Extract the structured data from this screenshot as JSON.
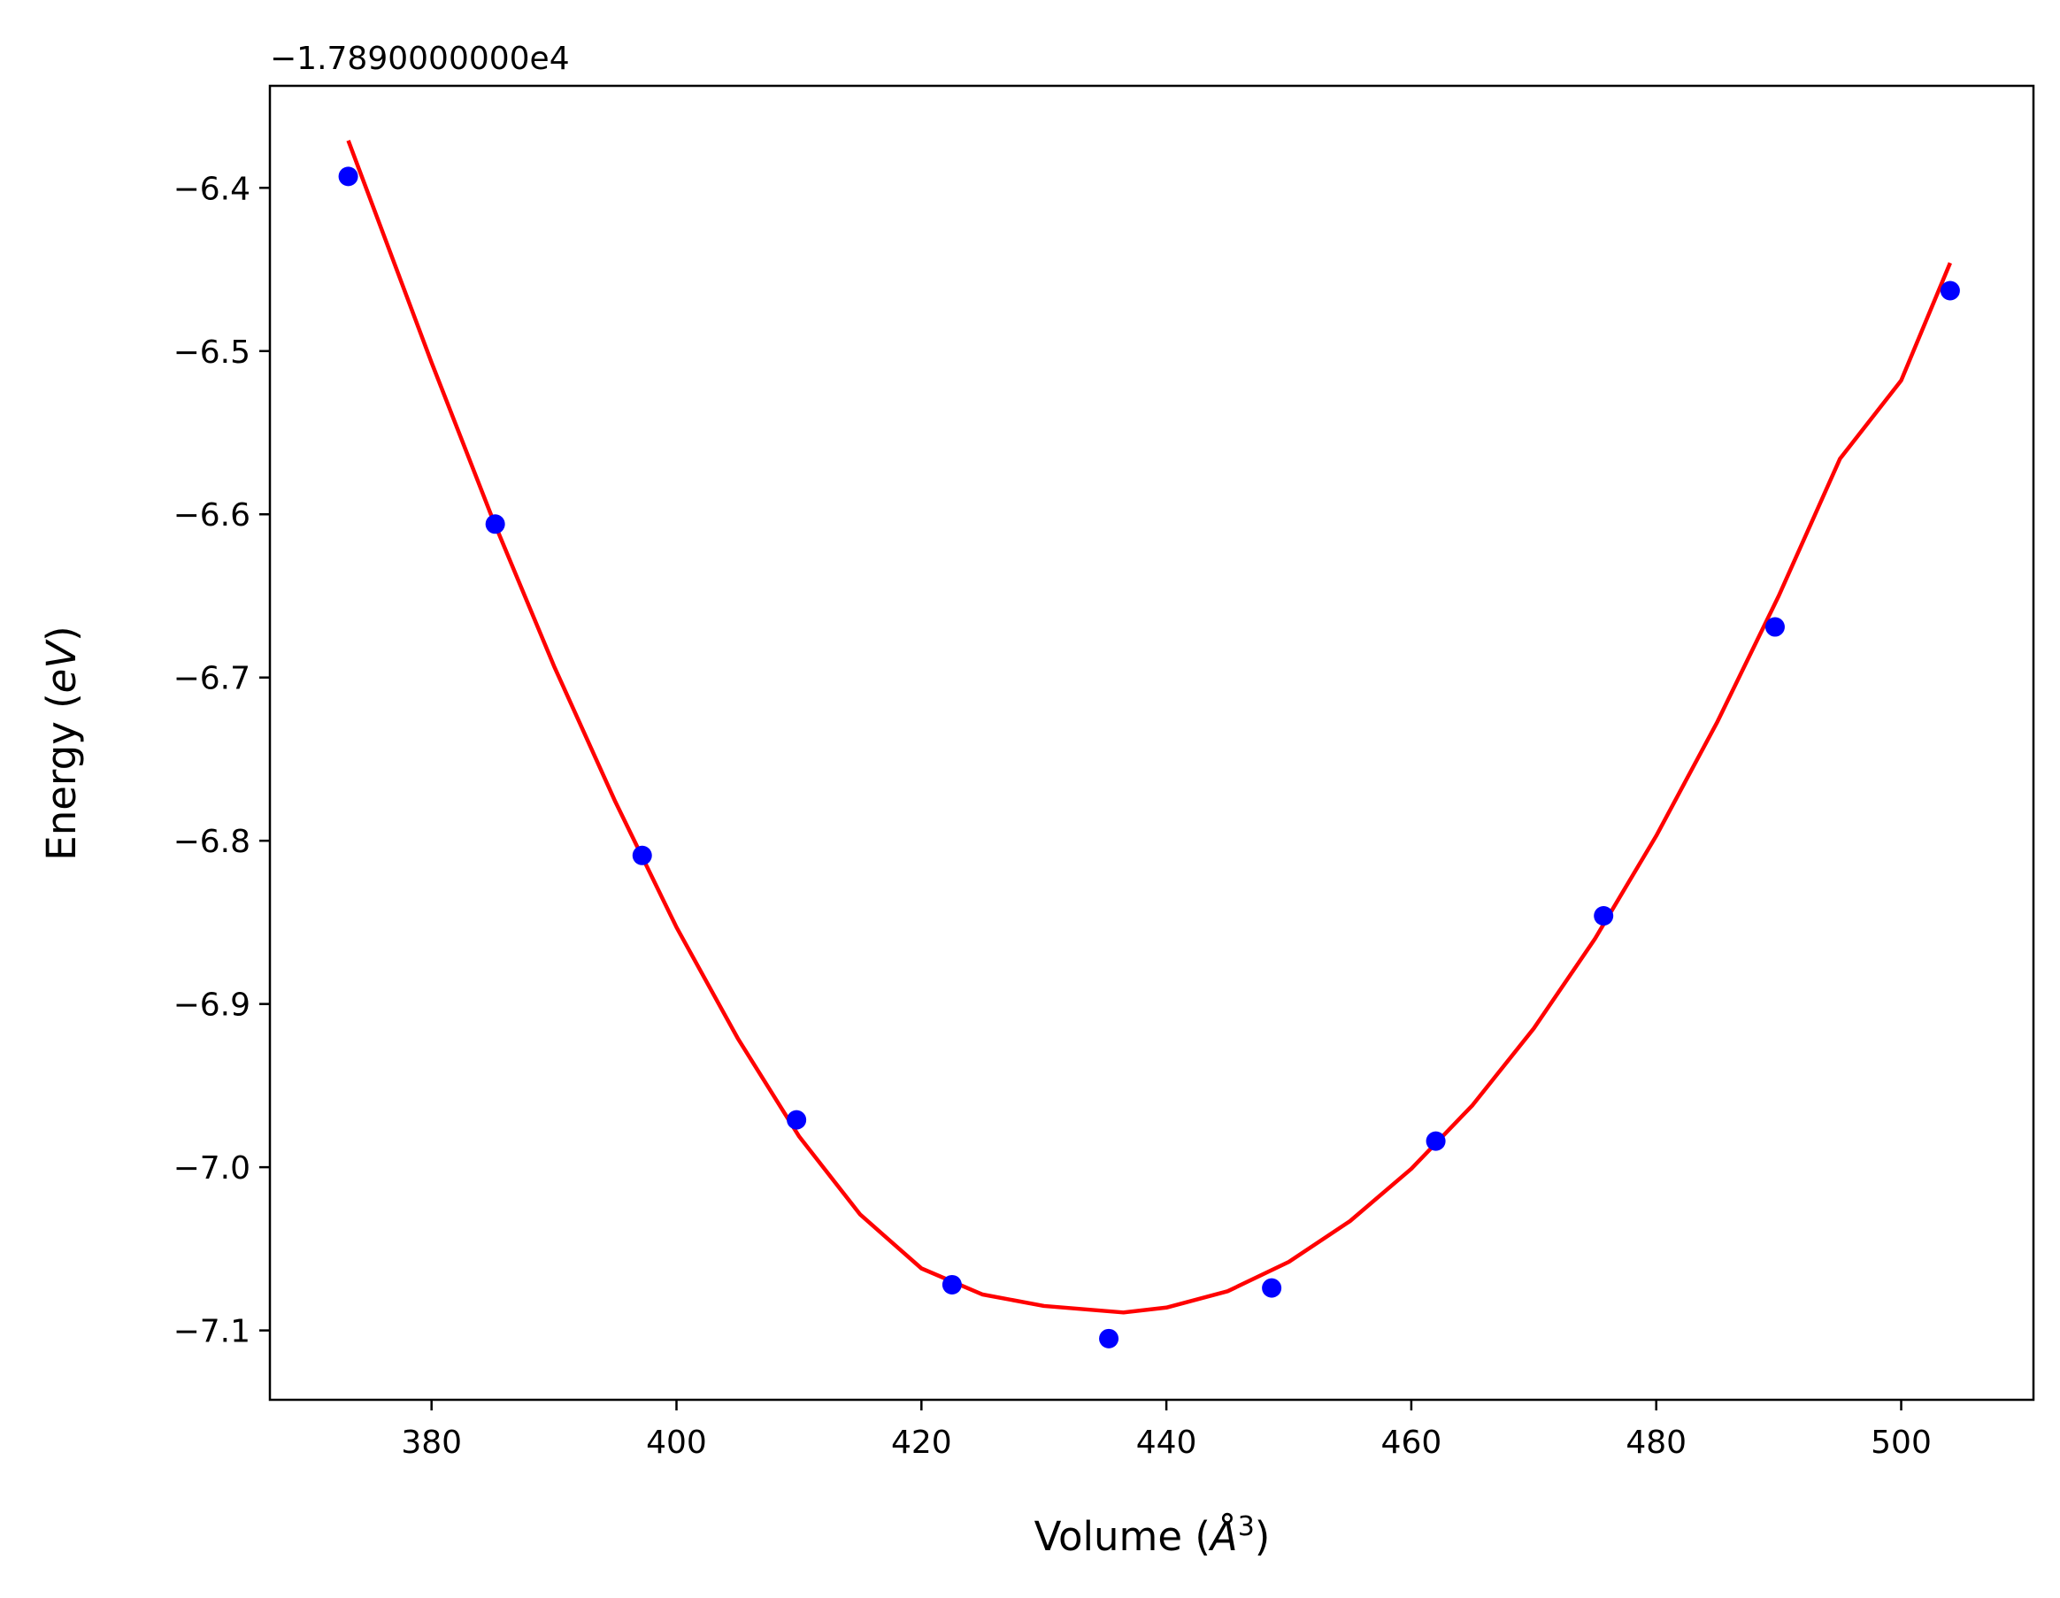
{
  "chart_data": {
    "type": "scatter",
    "title": "",
    "xlabel_main": "Volume (",
    "xlabel_unit": "Å",
    "xlabel_sup": "3",
    "xlabel_close": ")",
    "ylabel_main": "Energy (",
    "ylabel_unit": "eV",
    "ylabel_close": ")",
    "y_offset_text": "−1.7890000000e4",
    "xlim": [
      366.8,
      510.8
    ],
    "ylim": [
      -7.1425,
      -6.3375
    ],
    "xticks": [
      380,
      400,
      420,
      440,
      460,
      480,
      500
    ],
    "yticks": [
      -6.4,
      -6.5,
      -6.6,
      -6.7,
      -6.8,
      -6.9,
      -7.0,
      -7.1
    ],
    "grid": false,
    "series": [
      {
        "kind": "points",
        "color": "#0000ff",
        "x": [
          373.2,
          385.2,
          397.2,
          409.8,
          422.5,
          435.3,
          448.6,
          462.0,
          475.7,
          489.7,
          504.0
        ],
        "y": [
          -6.393,
          -6.606,
          -6.809,
          -6.971,
          -7.072,
          -7.105,
          -7.074,
          -6.984,
          -6.846,
          -6.669,
          -6.463
        ]
      },
      {
        "kind": "fit-line",
        "color": "#ff0000",
        "x": [
          373.2,
          380,
          385,
          390,
          395,
          400,
          405,
          410,
          415,
          420,
          425,
          430,
          436.5,
          440,
          445,
          450,
          455,
          460,
          465,
          470,
          475,
          480,
          485,
          490,
          495,
          500,
          504.0
        ],
        "y": [
          -6.371,
          -6.507,
          -6.603,
          -6.693,
          -6.776,
          -6.853,
          -6.921,
          -6.981,
          -7.029,
          -7.062,
          -7.078,
          -7.085,
          -7.089,
          -7.086,
          -7.076,
          -7.058,
          -7.033,
          -7.001,
          -6.962,
          -6.915,
          -6.86,
          -6.797,
          -6.727,
          -6.65,
          -6.566,
          -6.518,
          -6.446
        ]
      }
    ]
  }
}
